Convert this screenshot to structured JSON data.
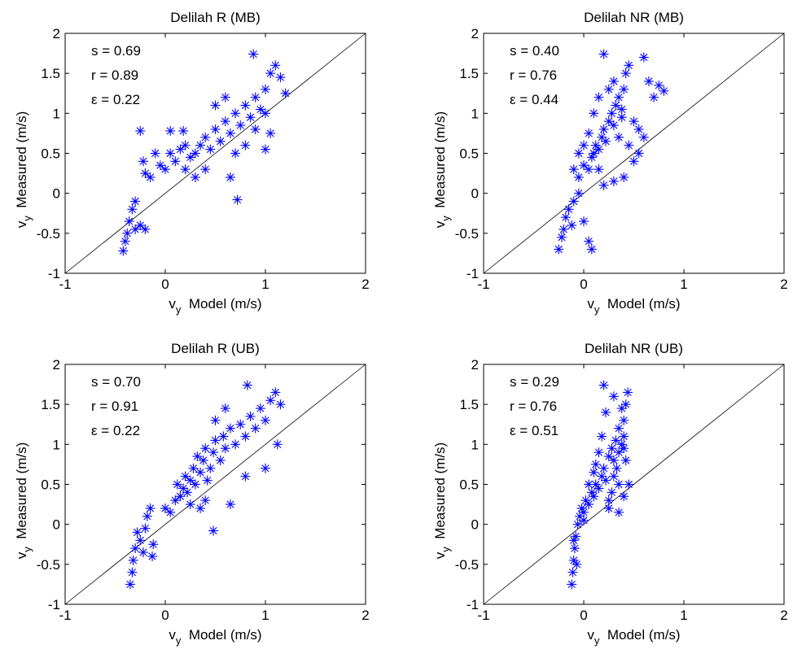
{
  "chart_data": [
    {
      "type": "scatter",
      "title": "Delilah R (MB)",
      "xlabel_main": "v",
      "xlabel_sub": "y",
      "xlabel_rest": "Model (m/s)",
      "ylabel_main": "v",
      "ylabel_sub": "y",
      "ylabel_rest": "Measured (m/s)",
      "xlim": [
        -1,
        2
      ],
      "ylim": [
        -1,
        2
      ],
      "xticks": [
        "-1",
        "0",
        "1",
        "2"
      ],
      "yticks": [
        "-1",
        "-0.5",
        "0",
        "0.5",
        "1",
        "1.5",
        "2"
      ],
      "stats": [
        "s = 0.69",
        "r = 0.89",
        "ε = 0.22"
      ],
      "reference_line": "1:1",
      "marker": "asterisk",
      "color": "#0000ff",
      "points": [
        [
          -0.42,
          -0.72
        ],
        [
          -0.4,
          -0.6
        ],
        [
          -0.38,
          -0.5
        ],
        [
          -0.36,
          -0.35
        ],
        [
          -0.33,
          -0.2
        ],
        [
          -0.3,
          -0.45
        ],
        [
          -0.25,
          -0.4
        ],
        [
          -0.2,
          -0.45
        ],
        [
          -0.3,
          -0.1
        ],
        [
          -0.15,
          0.2
        ],
        [
          -0.22,
          0.4
        ],
        [
          -0.1,
          0.5
        ],
        [
          -0.2,
          0.25
        ],
        [
          -0.05,
          0.35
        ],
        [
          0.0,
          0.3
        ],
        [
          0.05,
          0.5
        ],
        [
          0.1,
          0.4
        ],
        [
          0.15,
          0.55
        ],
        [
          0.2,
          0.3
        ],
        [
          0.25,
          0.45
        ],
        [
          0.3,
          0.5
        ],
        [
          0.35,
          0.6
        ],
        [
          0.4,
          0.7
        ],
        [
          0.45,
          0.55
        ],
        [
          0.5,
          0.8
        ],
        [
          0.55,
          0.65
        ],
        [
          0.6,
          0.9
        ],
        [
          0.65,
          0.75
        ],
        [
          0.7,
          1.0
        ],
        [
          0.75,
          0.85
        ],
        [
          0.8,
          1.1
        ],
        [
          0.85,
          0.95
        ],
        [
          0.9,
          1.2
        ],
        [
          0.95,
          1.05
        ],
        [
          1.0,
          1.3
        ],
        [
          1.05,
          1.5
        ],
        [
          1.1,
          1.6
        ],
        [
          1.0,
          1.0
        ],
        [
          0.9,
          0.8
        ],
        [
          0.7,
          0.5
        ],
        [
          0.65,
          0.2
        ],
        [
          0.72,
          -0.08
        ],
        [
          0.6,
          1.2
        ],
        [
          0.5,
          1.1
        ],
        [
          0.88,
          1.74
        ],
        [
          1.15,
          1.45
        ],
        [
          1.2,
          1.25
        ],
        [
          0.4,
          0.3
        ],
        [
          0.3,
          0.2
        ],
        [
          0.2,
          0.6
        ],
        [
          -0.25,
          0.78
        ],
        [
          0.05,
          0.78
        ],
        [
          0.18,
          0.78
        ],
        [
          1.05,
          0.75
        ],
        [
          1.0,
          0.55
        ],
        [
          0.8,
          0.6
        ]
      ]
    },
    {
      "type": "scatter",
      "title": "Delilah NR (MB)",
      "xlabel_main": "v",
      "xlabel_sub": "y",
      "xlabel_rest": "Model (m/s)",
      "ylabel_main": "v",
      "ylabel_sub": "y",
      "ylabel_rest": "Measured (m/s)",
      "xlim": [
        -1,
        2
      ],
      "ylim": [
        -1,
        2
      ],
      "xticks": [
        "-1",
        "0",
        "1",
        "2"
      ],
      "yticks": [
        "-1",
        "-0.5",
        "0",
        "0.5",
        "1",
        "1.5",
        "2"
      ],
      "stats": [
        "s = 0.40",
        "r = 0.76",
        "ε = 0.44"
      ],
      "reference_line": "1:1",
      "marker": "asterisk",
      "color": "#0000ff",
      "points": [
        [
          -0.25,
          -0.7
        ],
        [
          -0.22,
          -0.55
        ],
        [
          -0.2,
          -0.45
        ],
        [
          -0.18,
          -0.3
        ],
        [
          -0.15,
          -0.2
        ],
        [
          -0.1,
          -0.1
        ],
        [
          -0.05,
          0.0
        ],
        [
          0.0,
          -0.35
        ],
        [
          0.05,
          -0.6
        ],
        [
          0.08,
          -0.7
        ],
        [
          -0.05,
          0.2
        ],
        [
          0.0,
          0.35
        ],
        [
          0.05,
          0.3
        ],
        [
          0.08,
          0.45
        ],
        [
          0.1,
          0.5
        ],
        [
          0.12,
          0.6
        ],
        [
          0.15,
          0.55
        ],
        [
          0.18,
          0.7
        ],
        [
          0.2,
          0.8
        ],
        [
          0.22,
          0.65
        ],
        [
          0.25,
          0.9
        ],
        [
          0.28,
          1.0
        ],
        [
          0.3,
          0.85
        ],
        [
          0.32,
          1.1
        ],
        [
          0.35,
          1.2
        ],
        [
          0.38,
          1.05
        ],
        [
          0.4,
          1.3
        ],
        [
          0.42,
          1.5
        ],
        [
          0.45,
          1.6
        ],
        [
          0.3,
          1.4
        ],
        [
          0.25,
          1.3
        ],
        [
          0.2,
          1.74
        ],
        [
          0.15,
          1.2
        ],
        [
          0.1,
          1.0
        ],
        [
          0.05,
          0.75
        ],
        [
          0.0,
          0.6
        ],
        [
          -0.05,
          0.5
        ],
        [
          0.5,
          0.9
        ],
        [
          0.55,
          0.8
        ],
        [
          0.6,
          1.7
        ],
        [
          0.65,
          1.4
        ],
        [
          0.7,
          1.2
        ],
        [
          0.75,
          1.35
        ],
        [
          0.8,
          1.28
        ],
        [
          0.6,
          0.7
        ],
        [
          0.55,
          0.5
        ],
        [
          0.5,
          0.4
        ],
        [
          0.4,
          0.2
        ],
        [
          0.3,
          0.15
        ],
        [
          0.2,
          0.1
        ],
        [
          0.15,
          0.3
        ],
        [
          -0.1,
          0.3
        ],
        [
          -0.12,
          -0.4
        ],
        [
          0.35,
          0.7
        ],
        [
          0.45,
          0.6
        ],
        [
          0.38,
          0.95
        ]
      ]
    },
    {
      "type": "scatter",
      "title": "Delilah R (UB)",
      "xlabel_main": "v",
      "xlabel_sub": "y",
      "xlabel_rest": "Model (m/s)",
      "ylabel_main": "v",
      "ylabel_sub": "y",
      "ylabel_rest": "Measured (m/s)",
      "xlim": [
        -1,
        2
      ],
      "ylim": [
        -1,
        2
      ],
      "xticks": [
        "-1",
        "0",
        "1",
        "2"
      ],
      "yticks": [
        "-1",
        "-0.5",
        "0",
        "0.5",
        "1",
        "1.5",
        "2"
      ],
      "stats": [
        "s = 0.70",
        "r = 0.91",
        "ε = 0.22"
      ],
      "reference_line": "1:1",
      "marker": "asterisk",
      "color": "#0000ff",
      "points": [
        [
          -0.35,
          -0.75
        ],
        [
          -0.33,
          -0.6
        ],
        [
          -0.32,
          -0.45
        ],
        [
          -0.3,
          -0.3
        ],
        [
          -0.28,
          -0.1
        ],
        [
          -0.25,
          -0.2
        ],
        [
          -0.22,
          -0.35
        ],
        [
          -0.2,
          -0.05
        ],
        [
          -0.18,
          0.1
        ],
        [
          -0.15,
          0.2
        ],
        [
          -0.13,
          -0.4
        ],
        [
          -0.12,
          -0.25
        ],
        [
          0.0,
          0.2
        ],
        [
          0.05,
          0.15
        ],
        [
          0.1,
          0.3
        ],
        [
          0.12,
          0.5
        ],
        [
          0.15,
          0.35
        ],
        [
          0.18,
          0.45
        ],
        [
          0.2,
          0.6
        ],
        [
          0.22,
          0.4
        ],
        [
          0.25,
          0.55
        ],
        [
          0.28,
          0.7
        ],
        [
          0.3,
          0.5
        ],
        [
          0.32,
          0.85
        ],
        [
          0.35,
          0.65
        ],
        [
          0.38,
          0.8
        ],
        [
          0.4,
          0.95
        ],
        [
          0.42,
          0.55
        ],
        [
          0.45,
          0.7
        ],
        [
          0.48,
          0.9
        ],
        [
          0.5,
          1.05
        ],
        [
          0.55,
          0.8
        ],
        [
          0.58,
          1.1
        ],
        [
          0.6,
          0.95
        ],
        [
          0.65,
          1.2
        ],
        [
          0.7,
          1.0
        ],
        [
          0.75,
          1.25
        ],
        [
          0.8,
          1.1
        ],
        [
          0.85,
          1.35
        ],
        [
          0.9,
          1.2
        ],
        [
          0.95,
          1.45
        ],
        [
          1.0,
          1.3
        ],
        [
          1.05,
          1.55
        ],
        [
          1.1,
          1.65
        ],
        [
          1.15,
          1.5
        ],
        [
          1.12,
          1.0
        ],
        [
          1.0,
          0.7
        ],
        [
          0.8,
          0.6
        ],
        [
          0.65,
          0.25
        ],
        [
          0.48,
          -0.08
        ],
        [
          0.82,
          1.74
        ],
        [
          0.6,
          1.45
        ],
        [
          0.5,
          1.3
        ],
        [
          0.4,
          0.3
        ],
        [
          0.35,
          0.2
        ],
        [
          0.25,
          0.25
        ]
      ]
    },
    {
      "type": "scatter",
      "title": "Delilah NR (UB)",
      "xlabel_main": "v",
      "xlabel_sub": "y",
      "xlabel_rest": "Model (m/s)",
      "ylabel_main": "v",
      "ylabel_sub": "y",
      "ylabel_rest": "Measured (m/s)",
      "xlim": [
        -1,
        2
      ],
      "ylim": [
        -1,
        2
      ],
      "xticks": [
        "-1",
        "0",
        "1",
        "2"
      ],
      "yticks": [
        "-1",
        "-0.5",
        "0",
        "0.5",
        "1",
        "1.5",
        "2"
      ],
      "stats": [
        "s = 0.29",
        "r = 0.76",
        "ε = 0.51"
      ],
      "reference_line": "1:1",
      "marker": "asterisk",
      "color": "#0000ff",
      "points": [
        [
          -0.12,
          -0.75
        ],
        [
          -0.11,
          -0.6
        ],
        [
          -0.1,
          -0.45
        ],
        [
          -0.09,
          -0.3
        ],
        [
          -0.08,
          -0.15
        ],
        [
          -0.06,
          0.0
        ],
        [
          -0.04,
          0.1
        ],
        [
          -0.02,
          0.2
        ],
        [
          0.0,
          0.15
        ],
        [
          0.02,
          0.3
        ],
        [
          0.05,
          0.25
        ],
        [
          0.08,
          0.4
        ],
        [
          0.1,
          0.35
        ],
        [
          0.12,
          0.5
        ],
        [
          0.15,
          0.45
        ],
        [
          0.18,
          0.6
        ],
        [
          0.2,
          0.7
        ],
        [
          0.22,
          0.55
        ],
        [
          0.25,
          0.85
        ],
        [
          0.28,
          0.95
        ],
        [
          0.3,
          0.8
        ],
        [
          0.32,
          1.05
        ],
        [
          0.35,
          1.2
        ],
        [
          0.38,
          1.0
        ],
        [
          0.4,
          1.3
        ],
        [
          0.42,
          1.5
        ],
        [
          0.44,
          1.65
        ],
        [
          0.4,
          1.1
        ],
        [
          0.35,
          0.9
        ],
        [
          0.3,
          0.6
        ],
        [
          0.28,
          0.4
        ],
        [
          0.25,
          0.3
        ],
        [
          0.35,
          0.15
        ],
        [
          0.4,
          0.35
        ],
        [
          0.45,
          0.5
        ],
        [
          0.2,
          1.74
        ],
        [
          0.22,
          1.4
        ],
        [
          0.18,
          1.1
        ],
        [
          0.15,
          0.9
        ],
        [
          0.12,
          0.75
        ],
        [
          0.1,
          0.65
        ],
        [
          0.05,
          0.5
        ],
        [
          0.3,
          1.6
        ],
        [
          0.38,
          1.45
        ],
        [
          0.42,
          0.8
        ],
        [
          0.35,
          0.5
        ],
        [
          -0.1,
          -0.2
        ],
        [
          -0.07,
          -0.5
        ],
        [
          0.0,
          0.05
        ],
        [
          0.25,
          0.2
        ],
        [
          0.33,
          0.7
        ],
        [
          0.4,
          0.95
        ]
      ]
    }
  ]
}
